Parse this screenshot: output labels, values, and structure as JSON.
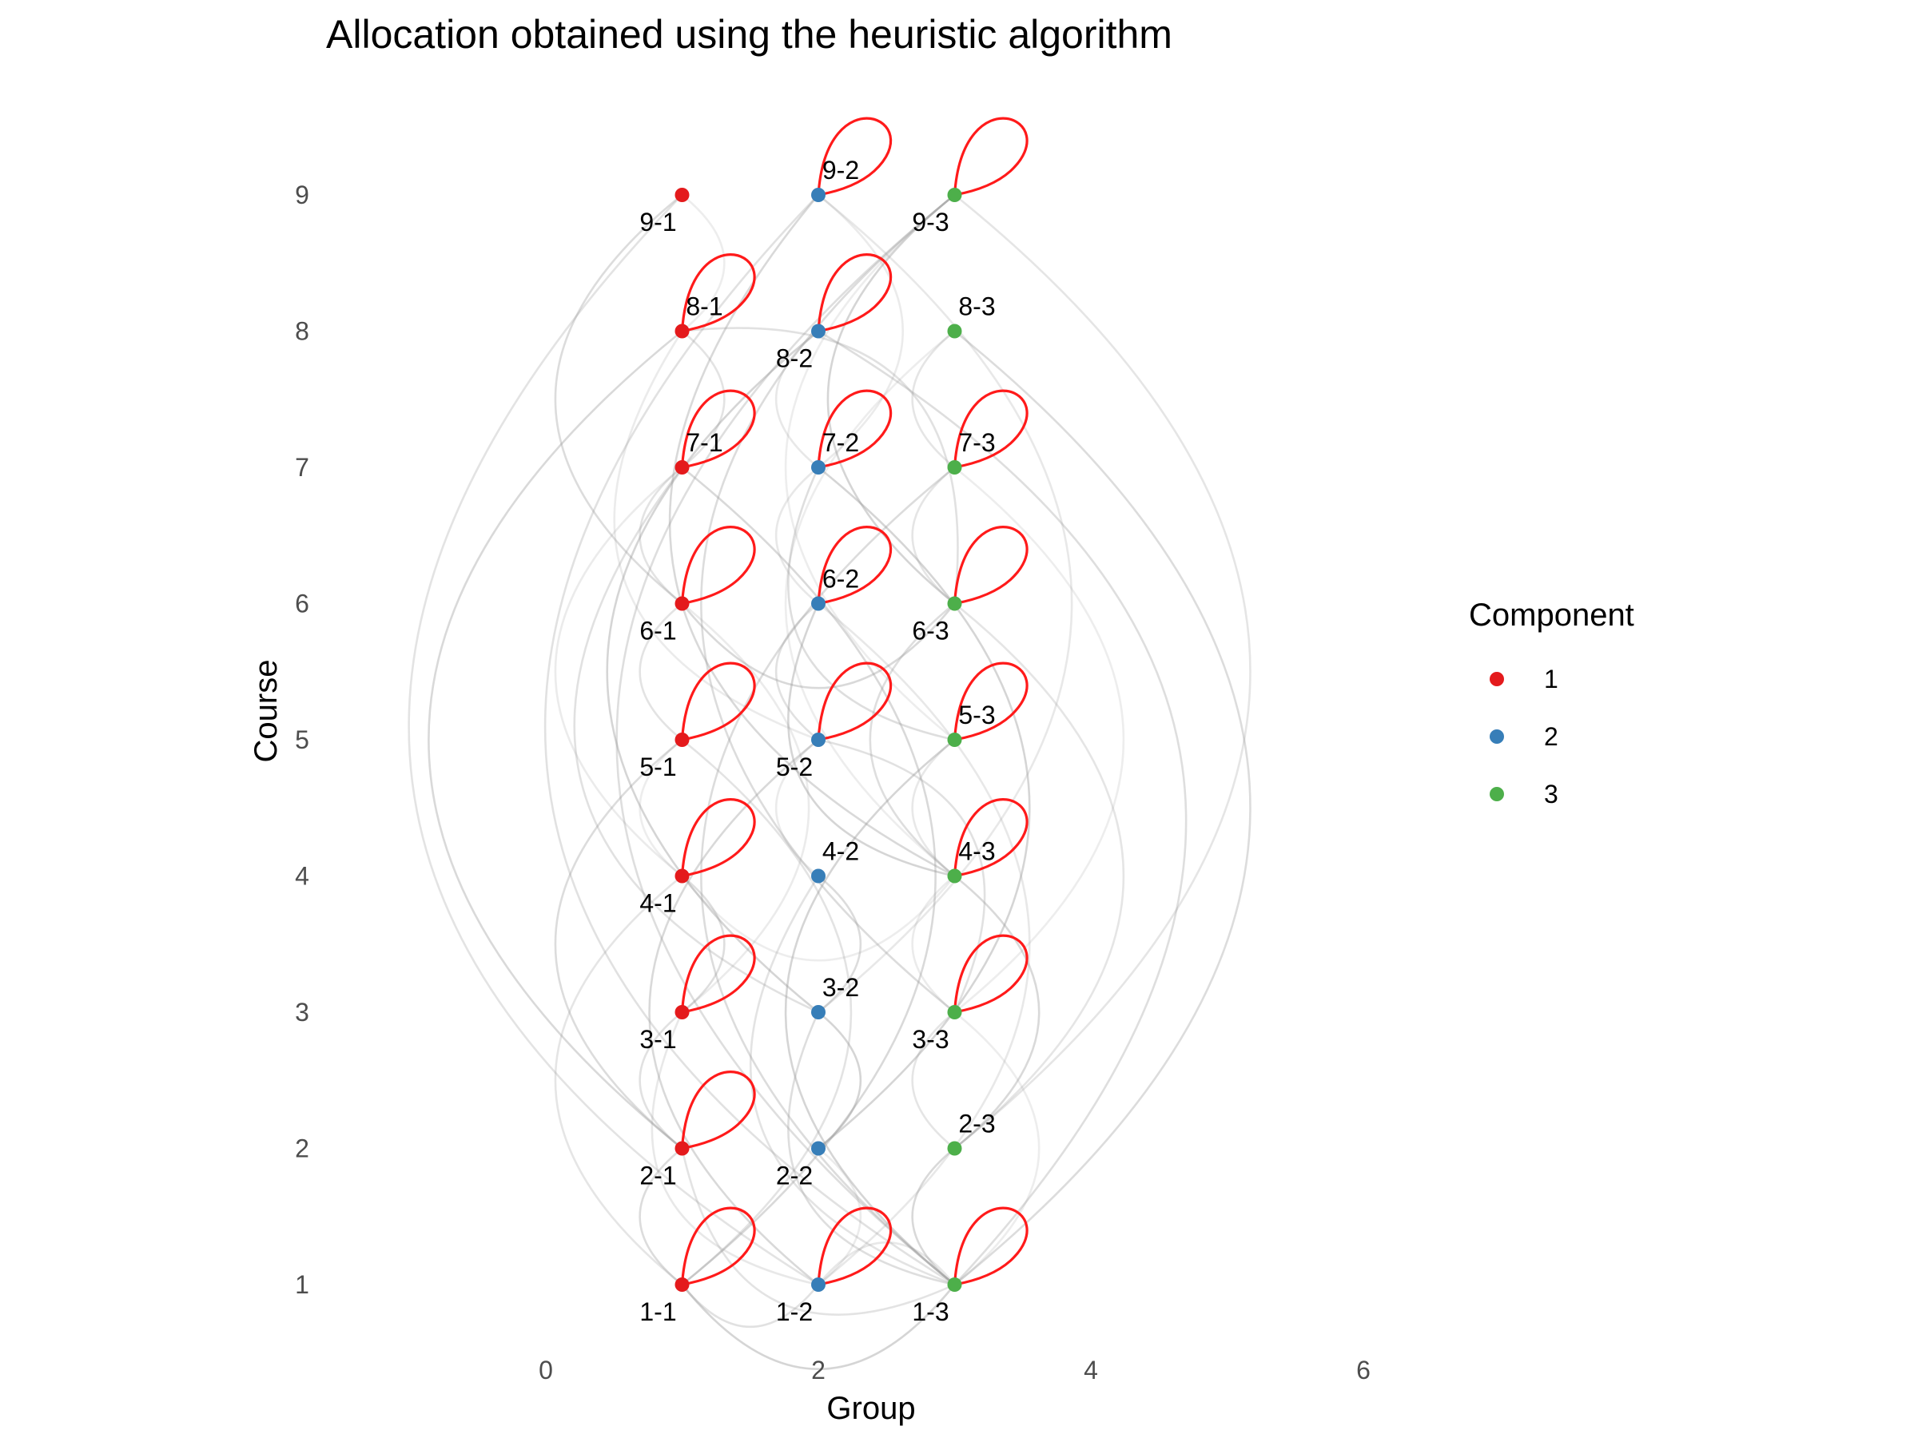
{
  "chart_data": {
    "type": "scatter",
    "title": "Allocation obtained using the heuristic algorithm",
    "xlabel": "Group",
    "ylabel": "Course",
    "xlim": [
      -1.5,
      6
    ],
    "ylim": [
      1,
      9
    ],
    "xticks": [
      0,
      2,
      4,
      6
    ],
    "yticks": [
      1,
      2,
      3,
      4,
      5,
      6,
      7,
      8,
      9
    ],
    "grid": false,
    "legend": {
      "title": "Component",
      "position": "right",
      "entries": [
        {
          "label": "1",
          "color": "#E41A1C"
        },
        {
          "label": "2",
          "color": "#377EB8"
        },
        {
          "label": "3",
          "color": "#4DAF4A"
        }
      ]
    },
    "nodes": [
      {
        "label": "1-1",
        "x": 1,
        "y": 1,
        "component": 1,
        "self_loop": true,
        "label_pos": "below"
      },
      {
        "label": "1-2",
        "x": 2,
        "y": 1,
        "component": 2,
        "self_loop": true,
        "label_pos": "below"
      },
      {
        "label": "1-3",
        "x": 3,
        "y": 1,
        "component": 3,
        "self_loop": true,
        "label_pos": "below"
      },
      {
        "label": "2-1",
        "x": 1,
        "y": 2,
        "component": 1,
        "self_loop": true,
        "label_pos": "below"
      },
      {
        "label": "2-2",
        "x": 2,
        "y": 2,
        "component": 2,
        "self_loop": false,
        "label_pos": "below"
      },
      {
        "label": "2-3",
        "x": 3,
        "y": 2,
        "component": 3,
        "self_loop": false,
        "label_pos": "above"
      },
      {
        "label": "3-1",
        "x": 1,
        "y": 3,
        "component": 1,
        "self_loop": true,
        "label_pos": "below"
      },
      {
        "label": "3-2",
        "x": 2,
        "y": 3,
        "component": 2,
        "self_loop": false,
        "label_pos": "above"
      },
      {
        "label": "3-3",
        "x": 3,
        "y": 3,
        "component": 3,
        "self_loop": true,
        "label_pos": "below"
      },
      {
        "label": "4-1",
        "x": 1,
        "y": 4,
        "component": 1,
        "self_loop": true,
        "label_pos": "below"
      },
      {
        "label": "4-2",
        "x": 2,
        "y": 4,
        "component": 2,
        "self_loop": false,
        "label_pos": "above"
      },
      {
        "label": "4-3",
        "x": 3,
        "y": 4,
        "component": 3,
        "self_loop": true,
        "label_pos": "above"
      },
      {
        "label": "5-1",
        "x": 1,
        "y": 5,
        "component": 1,
        "self_loop": true,
        "label_pos": "below"
      },
      {
        "label": "5-2",
        "x": 2,
        "y": 5,
        "component": 2,
        "self_loop": true,
        "label_pos": "below"
      },
      {
        "label": "5-3",
        "x": 3,
        "y": 5,
        "component": 3,
        "self_loop": true,
        "label_pos": "above"
      },
      {
        "label": "6-1",
        "x": 1,
        "y": 6,
        "component": 1,
        "self_loop": true,
        "label_pos": "below"
      },
      {
        "label": "6-2",
        "x": 2,
        "y": 6,
        "component": 2,
        "self_loop": true,
        "label_pos": "above"
      },
      {
        "label": "6-3",
        "x": 3,
        "y": 6,
        "component": 3,
        "self_loop": true,
        "label_pos": "below"
      },
      {
        "label": "7-1",
        "x": 1,
        "y": 7,
        "component": 1,
        "self_loop": true,
        "label_pos": "above"
      },
      {
        "label": "7-2",
        "x": 2,
        "y": 7,
        "component": 2,
        "self_loop": true,
        "label_pos": "above"
      },
      {
        "label": "7-3",
        "x": 3,
        "y": 7,
        "component": 3,
        "self_loop": true,
        "label_pos": "above"
      },
      {
        "label": "8-1",
        "x": 1,
        "y": 8,
        "component": 1,
        "self_loop": true,
        "label_pos": "above"
      },
      {
        "label": "8-2",
        "x": 2,
        "y": 8,
        "component": 2,
        "self_loop": true,
        "label_pos": "below"
      },
      {
        "label": "8-3",
        "x": 3,
        "y": 8,
        "component": 3,
        "self_loop": false,
        "label_pos": "above"
      },
      {
        "label": "9-1",
        "x": 1,
        "y": 9,
        "component": 1,
        "self_loop": false,
        "label_pos": "below"
      },
      {
        "label": "9-2",
        "x": 2,
        "y": 9,
        "component": 2,
        "self_loop": true,
        "label_pos": "above"
      },
      {
        "label": "9-3",
        "x": 3,
        "y": 9,
        "component": 3,
        "self_loop": true,
        "label_pos": "below"
      }
    ],
    "edges": [
      [
        "9-1",
        "8-1"
      ],
      [
        "9-1",
        "6-1"
      ],
      [
        "9-1",
        "1-2"
      ],
      [
        "9-2",
        "7-2"
      ],
      [
        "9-2",
        "4-3"
      ],
      [
        "9-2",
        "1-3"
      ],
      [
        "9-2",
        "3-2"
      ],
      [
        "9-3",
        "6-3"
      ],
      [
        "9-3",
        "1-3"
      ],
      [
        "9-3",
        "2-3"
      ],
      [
        "9-3",
        "5-3"
      ],
      [
        "9-3",
        "3-3"
      ],
      [
        "8-1",
        "7-1"
      ],
      [
        "8-1",
        "5-2"
      ],
      [
        "8-1",
        "2-1"
      ],
      [
        "8-1",
        "6-3"
      ],
      [
        "8-2",
        "7-2"
      ],
      [
        "8-2",
        "3-2"
      ],
      [
        "8-2",
        "1-3"
      ],
      [
        "8-3",
        "7-3"
      ],
      [
        "8-3",
        "4-3"
      ],
      [
        "8-3",
        "1-3"
      ],
      [
        "7-1",
        "6-1"
      ],
      [
        "7-1",
        "4-1"
      ],
      [
        "7-1",
        "1-1"
      ],
      [
        "7-1",
        "3-2"
      ],
      [
        "7-2",
        "6-2"
      ],
      [
        "7-2",
        "2-2"
      ],
      [
        "7-2",
        "5-3"
      ],
      [
        "7-3",
        "6-3"
      ],
      [
        "7-3",
        "3-3"
      ],
      [
        "7-3",
        "1-3"
      ],
      [
        "6-1",
        "5-1"
      ],
      [
        "6-1",
        "3-1"
      ],
      [
        "6-1",
        "6-3"
      ],
      [
        "6-2",
        "5-2"
      ],
      [
        "6-2",
        "1-2"
      ],
      [
        "6-2",
        "4-3"
      ],
      [
        "6-3",
        "4-3"
      ],
      [
        "6-3",
        "2-3"
      ],
      [
        "5-1",
        "4-1"
      ],
      [
        "5-1",
        "2-1"
      ],
      [
        "5-1",
        "1-1"
      ],
      [
        "5-2",
        "4-2"
      ],
      [
        "5-2",
        "1-2"
      ],
      [
        "5-2",
        "3-3"
      ],
      [
        "5-3",
        "4-3"
      ],
      [
        "5-3",
        "1-3"
      ],
      [
        "4-1",
        "3-1"
      ],
      [
        "4-1",
        "1-1"
      ],
      [
        "4-1",
        "4-3"
      ],
      [
        "4-2",
        "3-2"
      ],
      [
        "4-2",
        "1-3"
      ],
      [
        "4-3",
        "3-3"
      ],
      [
        "4-3",
        "2-3"
      ],
      [
        "3-1",
        "2-1"
      ],
      [
        "3-1",
        "1-2"
      ],
      [
        "3-2",
        "2-2"
      ],
      [
        "3-2",
        "1-3"
      ],
      [
        "3-3",
        "2-3"
      ],
      [
        "3-3",
        "1-3"
      ],
      [
        "2-1",
        "1-1"
      ],
      [
        "2-1",
        "1-3"
      ],
      [
        "2-2",
        "1-2"
      ],
      [
        "2-3",
        "1-3"
      ],
      [
        "1-1",
        "1-2"
      ],
      [
        "1-2",
        "1-3"
      ],
      [
        "1-1",
        "1-3"
      ]
    ]
  }
}
